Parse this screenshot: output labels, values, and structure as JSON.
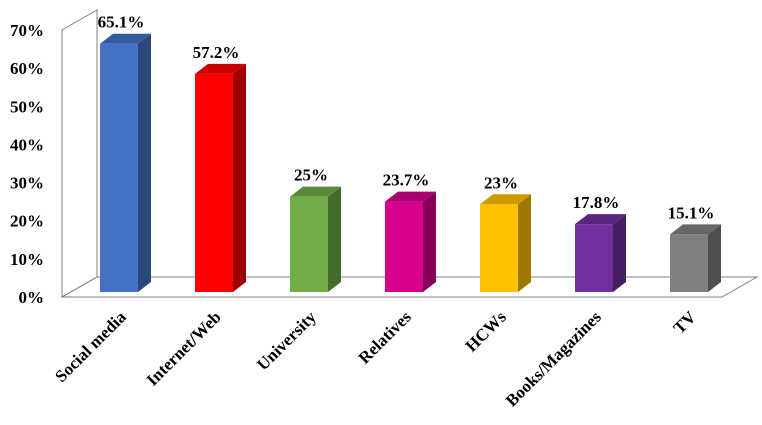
{
  "chart_data": {
    "type": "bar3d",
    "categories": [
      "Social media",
      "Internet/Web",
      "University",
      "Relatives",
      "HCWs",
      "Books/Magazines",
      "TV"
    ],
    "values": [
      65.1,
      57.2,
      25,
      23.7,
      23,
      17.8,
      15.1
    ],
    "value_labels": [
      "65.1%",
      "57.2%",
      "25%",
      "23.7%",
      "23%",
      "17.8%",
      "15.1%"
    ],
    "colors": [
      "#4472c4",
      "#ff0000",
      "#70ad47",
      "#d6008c",
      "#ffc000",
      "#7030a0",
      "#808080"
    ],
    "ylim": [
      0,
      70
    ],
    "yticks": [
      {
        "value": 0,
        "label": "0%"
      },
      {
        "value": 10,
        "label": "10%"
      },
      {
        "value": 20,
        "label": "20%"
      },
      {
        "value": 30,
        "label": "30%"
      },
      {
        "value": 40,
        "label": "40%"
      },
      {
        "value": 50,
        "label": "50%"
      },
      {
        "value": 60,
        "label": "60%"
      },
      {
        "value": 70,
        "label": "70%"
      }
    ]
  }
}
